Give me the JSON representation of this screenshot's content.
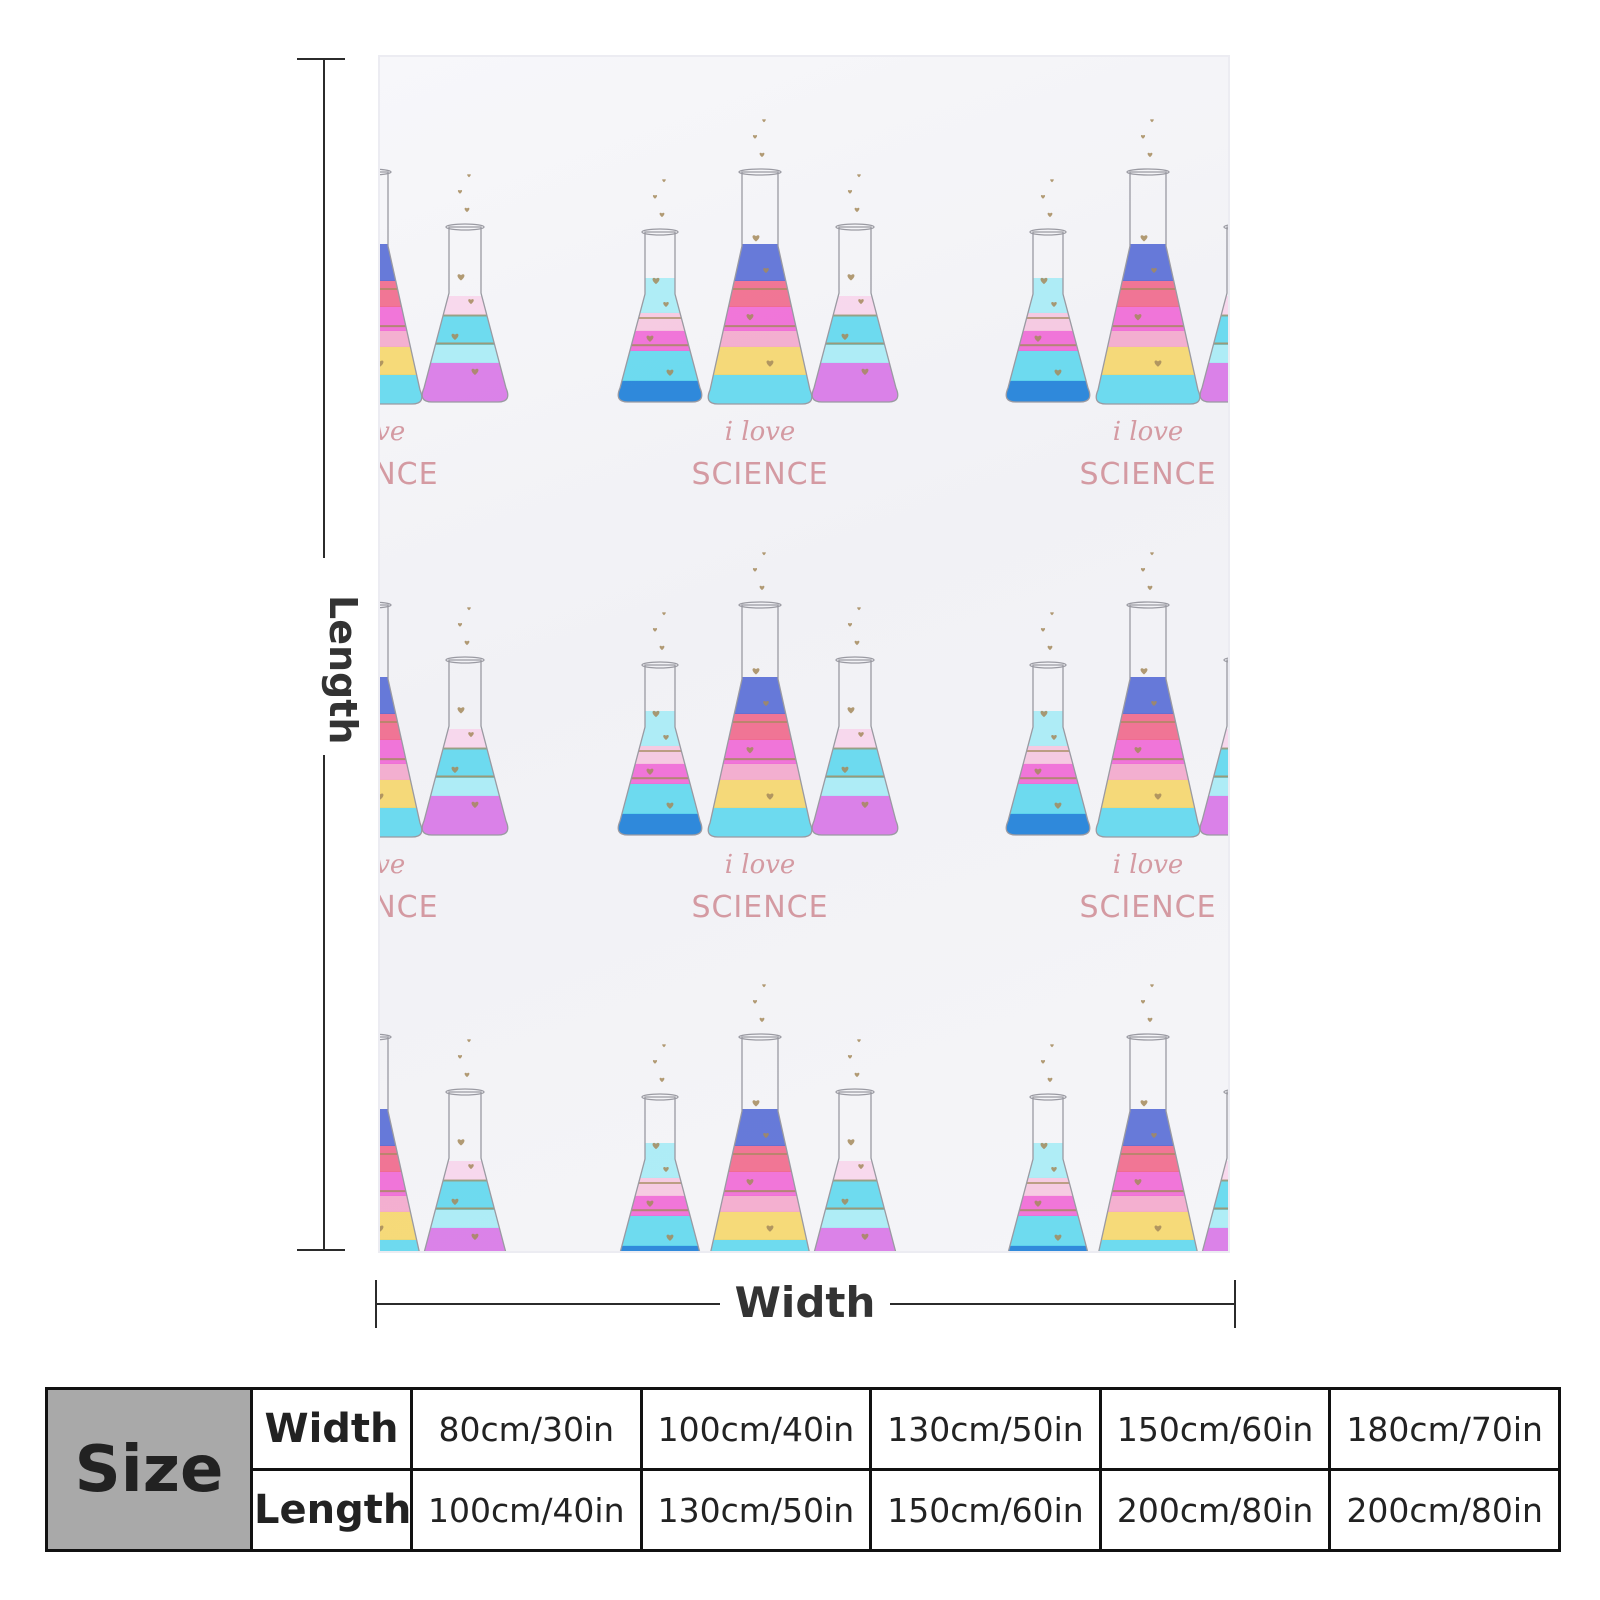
{
  "diagram": {
    "length_label": "Length",
    "width_label": "Width"
  },
  "artwork": {
    "script_text": "i love",
    "science_text": "SCIENCE",
    "colors": {
      "blue": "#5a6fd6",
      "pink": "#f06a8c",
      "magenta": "#f06ad6",
      "yellow": "#f5d76e",
      "cyan": "#62d8ee",
      "light_cyan": "#a8ecf5",
      "violet": "#d877e6",
      "deep_blue": "#1e80d8",
      "gold": "#a48a5c",
      "text_pink": "#d49aa2"
    }
  },
  "size_table": {
    "title": "Size",
    "row_labels": [
      "Width",
      "Length"
    ],
    "widths": [
      "80cm/30in",
      "100cm/40in",
      "130cm/50in",
      "150cm/60in",
      "180cm/70in"
    ],
    "lengths": [
      "100cm/40in",
      "130cm/50in",
      "150cm/60in",
      "200cm/80in",
      "200cm/80in"
    ]
  }
}
